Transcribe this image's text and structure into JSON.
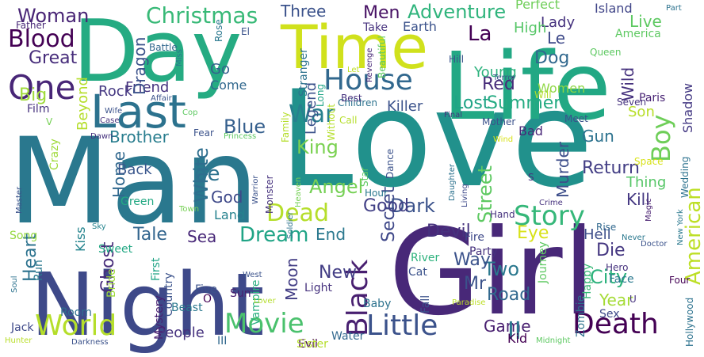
{
  "words": [
    {
      "text": "Love",
      "color": "#21918c"
    },
    {
      "text": "Man",
      "color": "#2a788e"
    },
    {
      "text": "Girl",
      "color": "#482878"
    },
    {
      "text": "Night",
      "color": "#3e4989"
    },
    {
      "text": "Day",
      "color": "#25ab82"
    },
    {
      "text": "Life",
      "color": "#22a884"
    },
    {
      "text": "Time",
      "color": "#d0e11c"
    },
    {
      "text": "Last",
      "color": "#2c728e"
    },
    {
      "text": "House",
      "color": "#31688e"
    },
    {
      "text": "One",
      "color": "#482677"
    },
    {
      "text": "Story",
      "color": "#35b779"
    },
    {
      "text": "Dead",
      "color": "#b5de2b"
    },
    {
      "text": "Boy",
      "color": "#6ece58"
    },
    {
      "text": "World",
      "color": "#b5de2b"
    },
    {
      "text": "Movie",
      "color": "#4ac16d"
    },
    {
      "text": "Little",
      "color": "#3b528b"
    },
    {
      "text": "Death",
      "color": "#440154"
    },
    {
      "text": "Black",
      "color": "#481f70"
    },
    {
      "text": "Blood",
      "color": "#440154"
    },
    {
      "text": "War",
      "color": "#27808e"
    },
    {
      "text": "Christmas",
      "color": "#38b977"
    },
    {
      "text": "Woman",
      "color": "#482475"
    },
    {
      "text": "Great",
      "color": "#472d7b"
    },
    {
      "text": "Big",
      "color": "#9fda3a"
    },
    {
      "text": "King",
      "color": "#7ad151"
    },
    {
      "text": "Blue",
      "color": "#355f8d"
    },
    {
      "text": "White",
      "color": "#2e6e8e"
    },
    {
      "text": "Secret",
      "color": "#3f4889"
    },
    {
      "text": "Angel",
      "color": "#75d054"
    },
    {
      "text": "Lost",
      "color": "#20a486"
    },
    {
      "text": "Summer",
      "color": "#25ab82"
    },
    {
      "text": "Red",
      "color": "#472c7a"
    },
    {
      "text": "Men",
      "color": "#471164"
    },
    {
      "text": "Adventure",
      "color": "#2fb47c"
    },
    {
      "text": "Three",
      "color": "#3b528b"
    },
    {
      "text": "Live",
      "color": "#5ec962"
    },
    {
      "text": "Lady",
      "color": "#46327e"
    },
    {
      "text": "Dog",
      "color": "#31688e"
    },
    {
      "text": "Le",
      "color": "#3e4989"
    },
    {
      "text": "La",
      "color": "#440154"
    },
    {
      "text": "Wild",
      "color": "#46327e"
    },
    {
      "text": "Return",
      "color": "#433e85"
    },
    {
      "text": "Murder",
      "color": "#3d4e8a"
    },
    {
      "text": "Kill",
      "color": "#453882"
    },
    {
      "text": "Gun",
      "color": "#2c728e"
    },
    {
      "text": "American",
      "color": "#bddf26"
    },
    {
      "text": "City",
      "color": "#2db27d"
    },
    {
      "text": "Year",
      "color": "#a5db36"
    },
    {
      "text": "Die",
      "color": "#453781"
    },
    {
      "text": "Hell",
      "color": "#3d4e8a"
    },
    {
      "text": "Eye",
      "color": "#d8e219"
    },
    {
      "text": "Devil",
      "color": "#46327e"
    },
    {
      "text": "Two",
      "color": "#2a788e"
    },
    {
      "text": "Mr",
      "color": "#3b528b"
    },
    {
      "text": "Road",
      "color": "#31688e"
    },
    {
      "text": "Way",
      "color": "#3b528b"
    },
    {
      "text": "New",
      "color": "#433e85"
    },
    {
      "text": "Dark",
      "color": "#3b528b"
    },
    {
      "text": "Good",
      "color": "#424086"
    },
    {
      "text": "Street",
      "color": "#5ec962"
    },
    {
      "text": "End",
      "color": "#2a788e"
    },
    {
      "text": "Dream",
      "color": "#20a486"
    },
    {
      "text": "Tale",
      "color": "#32658e"
    },
    {
      "text": "Sea",
      "color": "#482878"
    },
    {
      "text": "de",
      "color": "#2c728e"
    },
    {
      "text": "God",
      "color": "#3e4989"
    },
    {
      "text": "Land",
      "color": "#26828e"
    },
    {
      "text": "Home",
      "color": "#31688e"
    },
    {
      "text": "Back",
      "color": "#39568c"
    },
    {
      "text": "Ghost",
      "color": "#472c7a"
    },
    {
      "text": "Heart",
      "color": "#2c728e"
    },
    {
      "text": "Kiss",
      "color": "#25848e"
    },
    {
      "text": "Moon",
      "color": "#433e85"
    },
    {
      "text": "Game",
      "color": "#481f70"
    },
    {
      "text": "II",
      "color": "#2a788e"
    },
    {
      "text": "Kid",
      "color": "#440154"
    },
    {
      "text": "People",
      "color": "#46327e"
    },
    {
      "text": "Legend",
      "color": "#3b528b"
    },
    {
      "text": "Go",
      "color": "#34608d"
    },
    {
      "text": "Come",
      "color": "#31688e"
    },
    {
      "text": "Brother",
      "color": "#287d8e"
    },
    {
      "text": "Rock",
      "color": "#453882"
    },
    {
      "text": "Friend",
      "color": "#46327e"
    },
    {
      "text": "Killer",
      "color": "#3b528b"
    },
    {
      "text": "Young",
      "color": "#2db27d"
    },
    {
      "text": "High",
      "color": "#56c667"
    },
    {
      "text": "Women",
      "color": "#8fd744"
    },
    {
      "text": "Thing",
      "color": "#56c667"
    },
    {
      "text": "Son",
      "color": "#b8de29"
    },
    {
      "text": "Shadow",
      "color": "#443983"
    },
    {
      "text": "Paris",
      "color": "#482374"
    },
    {
      "text": "Island",
      "color": "#404588"
    },
    {
      "text": "Perfect",
      "color": "#6ece58"
    },
    {
      "text": "Earth",
      "color": "#3b528b"
    },
    {
      "text": "Take",
      "color": "#46327e"
    },
    {
      "text": "Dragon",
      "color": "#3b528b"
    },
    {
      "text": "Beyond",
      "color": "#b5de2b"
    },
    {
      "text": "Film",
      "color": "#46327e"
    },
    {
      "text": "Crazy",
      "color": "#9fda3a"
    },
    {
      "text": "Green",
      "color": "#23a983"
    },
    {
      "text": "Song",
      "color": "#95d840"
    },
    {
      "text": "Run",
      "color": "#2a788e"
    },
    {
      "text": "Sweet",
      "color": "#22a884"
    },
    {
      "text": "First",
      "color": "#20a486"
    },
    {
      "text": "Bride",
      "color": "#9fda3a"
    },
    {
      "text": "Country",
      "color": "#3b528b"
    },
    {
      "text": "Jack",
      "color": "#3e4989"
    },
    {
      "text": "Room",
      "color": "#2e6e8e"
    },
    {
      "text": "Sun",
      "color": "#481f70"
    },
    {
      "text": "Five",
      "color": "#3b528b"
    },
    {
      "text": "Light",
      "color": "#46327e"
    },
    {
      "text": "Vampire",
      "color": "#29af7f"
    },
    {
      "text": "Baby",
      "color": "#2c728e"
    },
    {
      "text": "Evil",
      "color": "#440154"
    },
    {
      "text": "Water",
      "color": "#31688e"
    },
    {
      "text": "Mystery",
      "color": "#481f70"
    },
    {
      "text": "Beast",
      "color": "#2a788e"
    },
    {
      "text": "III",
      "color": "#31688e"
    },
    {
      "text": "Fire",
      "color": "#3e4989"
    },
    {
      "text": "Party",
      "color": "#46327e"
    },
    {
      "text": "River",
      "color": "#2db27d"
    },
    {
      "text": "Fall",
      "color": "#3b528b"
    },
    {
      "text": "Cat",
      "color": "#3b528b"
    },
    {
      "text": "Journey",
      "color": "#5ec962"
    },
    {
      "text": "Face",
      "color": "#2a788e"
    },
    {
      "text": "Sex",
      "color": "#3e4989"
    },
    {
      "text": "Zombie",
      "color": "#2c728e"
    },
    {
      "text": "Happy",
      "color": "#38b977"
    },
    {
      "text": "Hero",
      "color": "#46327e"
    },
    {
      "text": "Four",
      "color": "#440154"
    },
    {
      "text": "Hollywood",
      "color": "#2c728e"
    },
    {
      "text": "Hunter",
      "color": "#b8de29"
    },
    {
      "text": "Darkness",
      "color": "#3b528b"
    },
    {
      "text": "Sister",
      "color": "#b5de2b"
    },
    {
      "text": "Paradise",
      "color": "#bddf26"
    },
    {
      "text": "Lover",
      "color": "#b5de2b"
    },
    {
      "text": "Midnight",
      "color": "#5ec962"
    },
    {
      "text": "Master",
      "color": "#3b528b"
    },
    {
      "text": "Soul",
      "color": "#2c728e"
    },
    {
      "text": "Sky",
      "color": "#25848e"
    },
    {
      "text": "Soldier",
      "color": "#2c728e"
    },
    {
      "text": "Warrior",
      "color": "#3b528b"
    },
    {
      "text": "West",
      "color": "#3b528b"
    },
    {
      "text": "Heaven",
      "color": "#75d054"
    },
    {
      "text": "Living",
      "color": "#3e4989"
    },
    {
      "text": "Daughter",
      "color": "#2c728e"
    },
    {
      "text": "Dance",
      "color": "#3b528b"
    },
    {
      "text": "Hour",
      "color": "#2a788e"
    },
    {
      "text": "Hand",
      "color": "#46327e"
    },
    {
      "text": "Crime",
      "color": "#46327e"
    },
    {
      "text": "Magic",
      "color": "#481f70"
    },
    {
      "text": "Space",
      "color": "#d8e219"
    },
    {
      "text": "Wedding",
      "color": "#2c728e"
    },
    {
      "text": "Doctor",
      "color": "#3b528b"
    },
    {
      "text": "Rise",
      "color": "#31688e"
    },
    {
      "text": "Never",
      "color": "#2a788e"
    },
    {
      "text": "New York",
      "color": "#2a788e"
    },
    {
      "text": "Seven",
      "color": "#46327e"
    },
    {
      "text": "Bad",
      "color": "#482878"
    },
    {
      "text": "Mother",
      "color": "#3b528b"
    },
    {
      "text": "Meet",
      "color": "#3b528b"
    },
    {
      "text": "Wind",
      "color": "#d8e219"
    },
    {
      "text": "Final",
      "color": "#46327e"
    },
    {
      "text": "Without",
      "color": "#b5de2b"
    },
    {
      "text": "Call",
      "color": "#b5de2b"
    },
    {
      "text": "Children",
      "color": "#2c728e"
    },
    {
      "text": "Long",
      "color": "#20a486"
    },
    {
      "text": "Best",
      "color": "#46327e"
    },
    {
      "text": "Beautiful",
      "color": "#5ec962"
    },
    {
      "text": "Stranger",
      "color": "#2c728e"
    },
    {
      "text": "Revenge",
      "color": "#482878"
    },
    {
      "text": "Let",
      "color": "#bddf26"
    },
    {
      "text": "Terror",
      "color": "#3b528b"
    },
    {
      "text": "Hill",
      "color": "#3b528b"
    },
    {
      "text": "Will",
      "color": "#b5de2b"
    },
    {
      "text": "Queen",
      "color": "#5ec962"
    },
    {
      "text": "America",
      "color": "#5ec962"
    },
    {
      "text": "Part",
      "color": "#2c728e"
    },
    {
      "text": "Battle",
      "color": "#31688e"
    },
    {
      "text": "Miss",
      "color": "#2a788e"
    },
    {
      "text": "Rose",
      "color": "#2a788e"
    },
    {
      "text": "El",
      "color": "#3b528b"
    },
    {
      "text": "Father",
      "color": "#482878"
    },
    {
      "text": "Affair",
      "color": "#3b528b"
    },
    {
      "text": "Wife",
      "color": "#3b528b"
    },
    {
      "text": "Case",
      "color": "#46327e"
    },
    {
      "text": "Cop",
      "color": "#5ec962"
    },
    {
      "text": "Family",
      "color": "#b5de2b"
    },
    {
      "text": "Monster",
      "color": "#46327e"
    },
    {
      "text": "Fear",
      "color": "#3b528b"
    },
    {
      "text": "Princess",
      "color": "#5ec962"
    },
    {
      "text": "Dawn",
      "color": "#46327e"
    },
    {
      "text": "Town",
      "color": "#75d054"
    },
    {
      "text": "Star",
      "color": "#5ec962"
    },
    {
      "text": "V",
      "color": "#75d054"
    },
    {
      "text": "S",
      "color": "#46327e"
    },
    {
      "text": "O",
      "color": "#440154"
    },
    {
      "text": "U",
      "color": "#46327e"
    }
  ]
}
